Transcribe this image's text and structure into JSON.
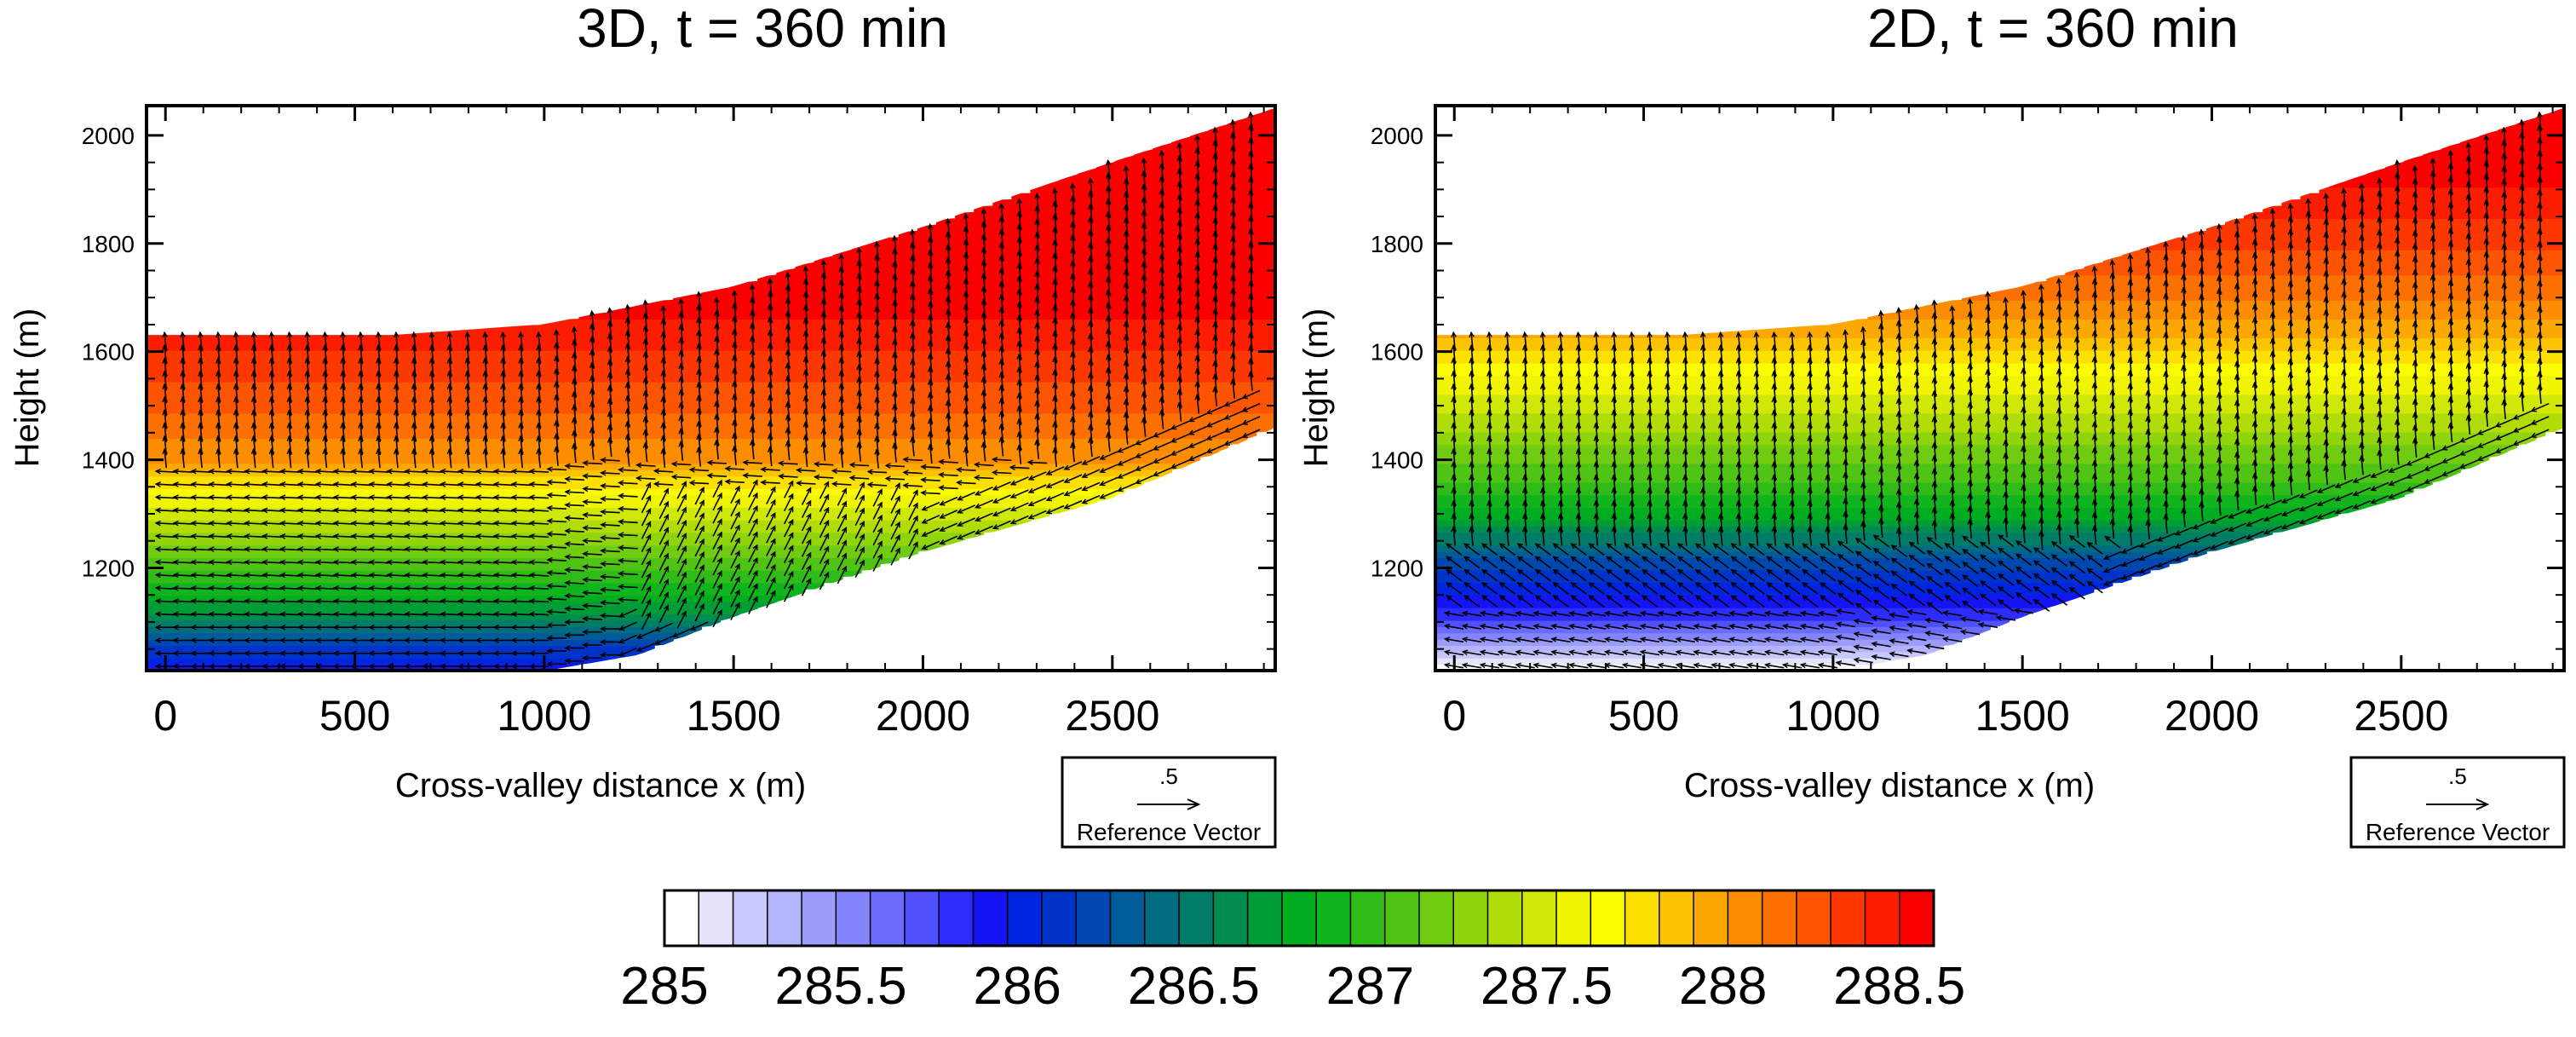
{
  "figure": {
    "colorbar": {
      "colors": [
        "#ffffff",
        "#e4e4fc",
        "#c8c8fc",
        "#b4b4fc",
        "#9c9cfc",
        "#8484fc",
        "#6c6cfc",
        "#5050fc",
        "#2c2cfc",
        "#1414f4",
        "#0024e0",
        "#0034c8",
        "#0048b0",
        "#005c98",
        "#006c80",
        "#007c68",
        "#008c50",
        "#009c38",
        "#00ac20",
        "#10b41c",
        "#30bc18",
        "#50c414",
        "#70cc10",
        "#90d40c",
        "#b0dc08",
        "#d0e808",
        "#f0f400",
        "#fcfc00",
        "#fce000",
        "#fcc400",
        "#fca800",
        "#fc8c00",
        "#fc7000",
        "#fc5400",
        "#fc3800",
        "#fc1c00",
        "#fc0000"
      ],
      "tick_labels": [
        "285",
        "285.5",
        "286",
        "286.5",
        "287",
        "287.5",
        "288",
        "288.5"
      ]
    },
    "reference_vector": {
      "value": ".5",
      "label": "Reference Vector"
    }
  },
  "chart_data": [
    {
      "type": "contour_vector",
      "title": "3D, t = 360 min",
      "xlabel": "Cross-valley distance x (m)",
      "ylabel": "Height (m)",
      "xlim": [
        -50,
        2930
      ],
      "ylim": [
        1010,
        2055
      ],
      "x_ticks": [
        0,
        500,
        1000,
        1500,
        2000,
        2500
      ],
      "y_ticks": [
        1200,
        1400,
        1600,
        1800,
        2000
      ],
      "x_tick_labels": [
        "0",
        "500",
        "1000",
        "1500",
        "2000",
        "2500"
      ],
      "y_tick_labels": [
        "1200",
        "1400",
        "1600",
        "1800",
        "2000"
      ],
      "terrain_profile": {
        "x": [
          -50,
          1000,
          1250,
          1500,
          2000,
          2500,
          2930
        ],
        "z": [
          1010,
          1010,
          1040,
          1110,
          1230,
          1330,
          1460
        ]
      },
      "top_profile": {
        "x": [
          -50,
          600,
          1000,
          1500,
          2000,
          2500,
          2930
        ],
        "z": [
          1630,
          1630,
          1650,
          1720,
          1830,
          1950,
          2050
        ]
      },
      "theta_profile": {
        "z": [
          1020,
          1060,
          1110,
          1160,
          1210,
          1260,
          1310,
          1350,
          1400,
          1450,
          1500,
          1560,
          1620,
          1700,
          1800,
          2050
        ],
        "theta": [
          285.9,
          286.2,
          286.55,
          286.85,
          287.05,
          287.25,
          287.45,
          287.65,
          287.95,
          288.05,
          288.15,
          288.25,
          288.35,
          288.45,
          288.5,
          288.5
        ]
      }
    },
    {
      "type": "contour_vector",
      "title": "2D, t = 360 min",
      "xlabel": "Cross-valley distance x (m)",
      "ylabel": "Height (m)",
      "xlim": [
        -50,
        2930
      ],
      "ylim": [
        1010,
        2055
      ],
      "x_ticks": [
        0,
        500,
        1000,
        1500,
        2000,
        2500
      ],
      "y_ticks": [
        1200,
        1400,
        1600,
        1800,
        2000
      ],
      "x_tick_labels": [
        "0",
        "500",
        "1000",
        "1500",
        "2000",
        "2500"
      ],
      "y_tick_labels": [
        "1200",
        "1400",
        "1600",
        "1800",
        "2000"
      ],
      "terrain_profile": {
        "x": [
          -50,
          1000,
          1250,
          1500,
          2000,
          2500,
          2930
        ],
        "z": [
          1010,
          1010,
          1040,
          1110,
          1230,
          1330,
          1460
        ]
      },
      "top_profile": {
        "x": [
          -50,
          600,
          1000,
          1500,
          2000,
          2500,
          2930
        ],
        "z": [
          1630,
          1630,
          1650,
          1720,
          1830,
          1950,
          2050
        ]
      },
      "theta_profile": {
        "z": [
          1010,
          1060,
          1110,
          1160,
          1210,
          1260,
          1300,
          1350,
          1400,
          1450,
          1500,
          1550,
          1600,
          1650,
          1700,
          1800,
          1900,
          2050
        ],
        "theta": [
          285.0,
          285.4,
          285.8,
          286.0,
          286.2,
          286.5,
          286.75,
          286.95,
          287.1,
          287.25,
          287.4,
          287.55,
          287.75,
          287.9,
          288.05,
          288.25,
          288.4,
          288.5
        ]
      }
    }
  ]
}
